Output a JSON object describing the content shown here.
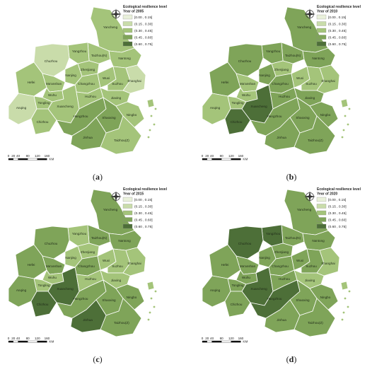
{
  "legend": {
    "title": "Ecological resilience level",
    "classes": [
      {
        "label": "[0.00 , 0.15]",
        "color": "#e9f0da"
      },
      {
        "label": "(0.15 , 0.30]",
        "color": "#c9dcaa"
      },
      {
        "label": "(0.30 , 0.45]",
        "color": "#a4c47a"
      },
      {
        "label": "(0.45 , 0.60]",
        "color": "#7fa459"
      },
      {
        "label": "(0.60 , 0.75]",
        "color": "#4d6f38"
      }
    ]
  },
  "scale": {
    "ticks": [
      "0",
      "20",
      "40",
      "80",
      "120",
      "160"
    ],
    "unit": "KM"
  },
  "north_icon": "north-arrow-compass-icon",
  "panels": [
    {
      "letter": "a",
      "year_label": "Year of 2005",
      "levels": {
        "Yancheng": 2,
        "Taizhou(N)": 2,
        "Nantong": 2,
        "Yangzhou": 2,
        "Chuzhou": 1,
        "Zhenjiang": 2,
        "Nanjing": 2,
        "Changzhou": 2,
        "Wuxi": 2,
        "Suzhou": 2,
        "Shanghai": 1,
        "Hefei": 2,
        "Ma'anshan": 2,
        "Wuhu": 2,
        "Tongling": 2,
        "Xuancheng": 2,
        "Huzhou": 2,
        "Jiaxing": 2,
        "Anqing": 1,
        "Chizhou": 2,
        "Hangzhou": 3,
        "Shaoxing": 3,
        "Ningbo": 2,
        "Jinhua": 3,
        "Taizhou(Z)": 2,
        "Zhoushan": 2
      }
    },
    {
      "letter": "b",
      "year_label": "Year of 2010",
      "levels": {
        "Yancheng": 3,
        "Taizhou(N)": 3,
        "Nantong": 3,
        "Yangzhou": 3,
        "Chuzhou": 3,
        "Zhenjiang": 2,
        "Nanjing": 3,
        "Changzhou": 3,
        "Wuxi": 2,
        "Suzhou": 2,
        "Shanghai": 2,
        "Hefei": 3,
        "Ma'anshan": 2,
        "Wuhu": 2,
        "Tongling": 2,
        "Xuancheng": 4,
        "Huzhou": 3,
        "Jiaxing": 3,
        "Anqing": 2,
        "Chizhou": 4,
        "Hangzhou": 3,
        "Shaoxing": 3,
        "Ningbo": 3,
        "Jinhua": 3,
        "Taizhou(Z)": 3,
        "Zhoushan": 2
      }
    },
    {
      "letter": "c",
      "year_label": "Year of 2015",
      "levels": {
        "Yancheng": 3,
        "Taizhou(N)": 3,
        "Nantong": 3,
        "Yangzhou": 2,
        "Chuzhou": 3,
        "Zhenjiang": 2,
        "Nanjing": 2,
        "Changzhou": 3,
        "Wuxi": 2,
        "Suzhou": 2,
        "Shanghai": 2,
        "Hefei": 3,
        "Ma'anshan": 3,
        "Wuhu": 2,
        "Tongling": 2,
        "Xuancheng": 4,
        "Huzhou": 2,
        "Jiaxing": 2,
        "Anqing": 3,
        "Chizhou": 4,
        "Hangzhou": 3,
        "Shaoxing": 3,
        "Ningbo": 3,
        "Jinhua": 4,
        "Taizhou(Z)": 3,
        "Zhoushan": 2
      }
    },
    {
      "letter": "d",
      "year_label": "Year of 2020",
      "levels": {
        "Yancheng": 3,
        "Taizhou(N)": 3,
        "Nantong": 3,
        "Yangzhou": 4,
        "Chuzhou": 4,
        "Zhenjiang": 3,
        "Nanjing": 3,
        "Changzhou": 3,
        "Wuxi": 3,
        "Suzhou": 3,
        "Shanghai": 2,
        "Hefei": 3,
        "Ma'anshan": 3,
        "Wuhu": 3,
        "Tongling": 3,
        "Xuancheng": 4,
        "Huzhou": 3,
        "Jiaxing": 2,
        "Anqing": 3,
        "Chizhou": 3,
        "Hangzhou": 4,
        "Shaoxing": 3,
        "Ningbo": 3,
        "Jinhua": 3,
        "Taizhou(Z)": 3,
        "Zhoushan": 2
      }
    }
  ]
}
